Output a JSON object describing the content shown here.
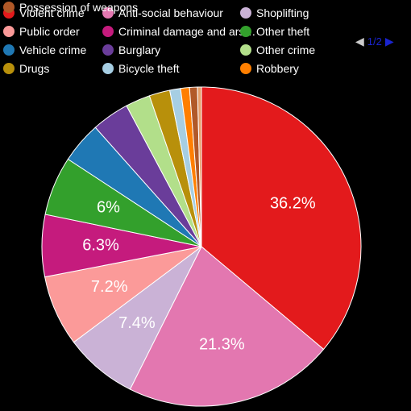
{
  "chart_data": {
    "type": "pie",
    "slices": [
      {
        "label": "Violent crime",
        "value": 36.2,
        "color": "#e31a1c",
        "data_label": "36.2%"
      },
      {
        "label": "Anti-social behaviour",
        "value": 21.3,
        "color": "#e377b0",
        "data_label": "21.3%"
      },
      {
        "label": "Shoplifting",
        "value": 7.4,
        "color": "#cab2d6",
        "data_label": "7.4%"
      },
      {
        "label": "Public order",
        "value": 7.2,
        "color": "#fb9a99",
        "data_label": "7.2%"
      },
      {
        "label": "Criminal damage and ars…",
        "value": 6.3,
        "color": "#c51b7d",
        "data_label": "6.3%"
      },
      {
        "label": "Other theft",
        "value": 6.0,
        "color": "#33a02c",
        "data_label": "6%"
      },
      {
        "label": "Vehicle crime",
        "value": 4.2,
        "color": "#1f78b4",
        "data_label": ""
      },
      {
        "label": "Burglary",
        "value": 3.8,
        "color": "#6a3d9a",
        "data_label": ""
      },
      {
        "label": "Other crime",
        "value": 2.5,
        "color": "#b2df8a",
        "data_label": ""
      },
      {
        "label": "Drugs",
        "value": 2.1,
        "color": "#b8900b",
        "data_label": ""
      },
      {
        "label": "Bicycle theft",
        "value": 1.1,
        "color": "#a6cee3",
        "data_label": ""
      },
      {
        "label": "Robbery",
        "value": 0.9,
        "color": "#ff7f00",
        "data_label": ""
      },
      {
        "label": "Possession of weapons",
        "value": 0.8,
        "color": "#b15928",
        "data_label": ""
      },
      {
        "label": "",
        "value": 0.4,
        "color": "#e5a06b",
        "data_label": ""
      }
    ],
    "legend_position": "top",
    "legend_columns": 3
  },
  "pager": {
    "prev_icon": "◀",
    "text": "1/2",
    "next_icon": "▶"
  }
}
